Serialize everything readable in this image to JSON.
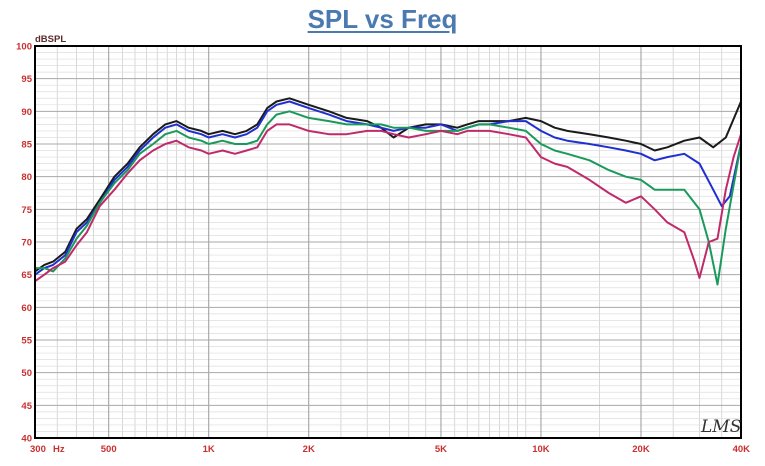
{
  "chart_data": {
    "type": "line",
    "title": "SPL vs Freq",
    "ylabel": "dBSPL",
    "xscale": "log",
    "xlim": [
      300,
      40000
    ],
    "ylim": [
      40,
      100
    ],
    "grid": true,
    "logo_text": "LMS",
    "x_ticks": [
      {
        "value": 300,
        "label": "300"
      },
      {
        "value": 500,
        "label": "500"
      },
      {
        "value": 1000,
        "label": "1K"
      },
      {
        "value": 2000,
        "label": "2K"
      },
      {
        "value": 5000,
        "label": "5K"
      },
      {
        "value": 10000,
        "label": "10K"
      },
      {
        "value": 20000,
        "label": "20K"
      },
      {
        "value": 40000,
        "label": "40K"
      }
    ],
    "x_unit": "Hz",
    "y_ticks": [
      {
        "value": 40,
        "label": "40"
      },
      {
        "value": 45,
        "label": "45"
      },
      {
        "value": 50,
        "label": "50"
      },
      {
        "value": 55,
        "label": "55"
      },
      {
        "value": 60,
        "label": "60"
      },
      {
        "value": 65,
        "label": "65"
      },
      {
        "value": 70,
        "label": "70"
      },
      {
        "value": 75,
        "label": "75"
      },
      {
        "value": 80,
        "label": "80"
      },
      {
        "value": 85,
        "label": "85"
      },
      {
        "value": 90,
        "label": "90"
      },
      {
        "value": 95,
        "label": "95"
      },
      {
        "value": 100,
        "label": "100"
      }
    ],
    "series": [
      {
        "color": "#1a1a1a",
        "points": [
          [
            300,
            65.5
          ],
          [
            320,
            66.5
          ],
          [
            340,
            67
          ],
          [
            370,
            68.5
          ],
          [
            400,
            72
          ],
          [
            430,
            73.5
          ],
          [
            470,
            76.5
          ],
          [
            520,
            80
          ],
          [
            570,
            82
          ],
          [
            620,
            84.5
          ],
          [
            680,
            86.5
          ],
          [
            740,
            88
          ],
          [
            800,
            88.5
          ],
          [
            870,
            87.5
          ],
          [
            950,
            87
          ],
          [
            1000,
            86.5
          ],
          [
            1100,
            87
          ],
          [
            1200,
            86.5
          ],
          [
            1300,
            87
          ],
          [
            1400,
            88
          ],
          [
            1500,
            90.5
          ],
          [
            1600,
            91.5
          ],
          [
            1750,
            92
          ],
          [
            2000,
            91
          ],
          [
            2300,
            90
          ],
          [
            2600,
            89
          ],
          [
            3000,
            88.5
          ],
          [
            3300,
            87.5
          ],
          [
            3600,
            86
          ],
          [
            4000,
            87.5
          ],
          [
            4500,
            88
          ],
          [
            5000,
            88
          ],
          [
            5600,
            87.5
          ],
          [
            6000,
            88
          ],
          [
            6500,
            88.5
          ],
          [
            7000,
            88.5
          ],
          [
            8000,
            88.5
          ],
          [
            9000,
            89
          ],
          [
            10000,
            88.5
          ],
          [
            11000,
            87.5
          ],
          [
            12000,
            87
          ],
          [
            14000,
            86.5
          ],
          [
            16000,
            86
          ],
          [
            18000,
            85.5
          ],
          [
            20000,
            85
          ],
          [
            22000,
            84
          ],
          [
            24000,
            84.5
          ],
          [
            27000,
            85.5
          ],
          [
            30000,
            86
          ],
          [
            33000,
            84.5
          ],
          [
            36000,
            86
          ],
          [
            40000,
            91.5
          ]
        ]
      },
      {
        "color": "#1f2fd0",
        "points": [
          [
            300,
            65
          ],
          [
            320,
            66
          ],
          [
            340,
            66.5
          ],
          [
            370,
            68
          ],
          [
            400,
            71.5
          ],
          [
            430,
            73
          ],
          [
            470,
            76
          ],
          [
            520,
            79.5
          ],
          [
            570,
            81.5
          ],
          [
            620,
            84
          ],
          [
            680,
            86
          ],
          [
            740,
            87.5
          ],
          [
            800,
            88
          ],
          [
            870,
            87
          ],
          [
            950,
            86.5
          ],
          [
            1000,
            86
          ],
          [
            1100,
            86.5
          ],
          [
            1200,
            86
          ],
          [
            1300,
            86.5
          ],
          [
            1400,
            87.5
          ],
          [
            1500,
            90
          ],
          [
            1600,
            91
          ],
          [
            1750,
            91.5
          ],
          [
            2000,
            90.5
          ],
          [
            2300,
            89.5
          ],
          [
            2600,
            88.5
          ],
          [
            3000,
            88
          ],
          [
            3300,
            87.5
          ],
          [
            3600,
            87
          ],
          [
            4000,
            87.5
          ],
          [
            4500,
            87.5
          ],
          [
            5000,
            88
          ],
          [
            5600,
            87
          ],
          [
            6000,
            87.5
          ],
          [
            6500,
            88
          ],
          [
            7000,
            88
          ],
          [
            8000,
            88.5
          ],
          [
            9000,
            88.5
          ],
          [
            10000,
            87
          ],
          [
            11000,
            86
          ],
          [
            12000,
            85.5
          ],
          [
            14000,
            85
          ],
          [
            16000,
            84.5
          ],
          [
            18000,
            84
          ],
          [
            20000,
            83.5
          ],
          [
            22000,
            82.5
          ],
          [
            24000,
            83
          ],
          [
            27000,
            83.5
          ],
          [
            30000,
            82
          ],
          [
            33000,
            78
          ],
          [
            35000,
            75.5
          ],
          [
            37000,
            77
          ],
          [
            40000,
            85
          ]
        ]
      },
      {
        "color": "#1a9a5a",
        "points": [
          [
            300,
            66
          ],
          [
            320,
            66
          ],
          [
            340,
            65.5
          ],
          [
            370,
            67.5
          ],
          [
            400,
            70.5
          ],
          [
            430,
            72.5
          ],
          [
            470,
            76
          ],
          [
            520,
            79
          ],
          [
            570,
            81
          ],
          [
            620,
            83.5
          ],
          [
            680,
            85
          ],
          [
            740,
            86.5
          ],
          [
            800,
            87
          ],
          [
            870,
            86
          ],
          [
            950,
            85.5
          ],
          [
            1000,
            85
          ],
          [
            1100,
            85.5
          ],
          [
            1200,
            85
          ],
          [
            1300,
            85
          ],
          [
            1400,
            85.5
          ],
          [
            1500,
            88
          ],
          [
            1600,
            89.5
          ],
          [
            1750,
            90
          ],
          [
            2000,
            89
          ],
          [
            2300,
            88.5
          ],
          [
            2600,
            88
          ],
          [
            3000,
            88
          ],
          [
            3300,
            88
          ],
          [
            3600,
            87.5
          ],
          [
            4000,
            87.5
          ],
          [
            4500,
            87
          ],
          [
            5000,
            87
          ],
          [
            5600,
            87
          ],
          [
            6000,
            87.5
          ],
          [
            6500,
            88
          ],
          [
            7000,
            88
          ],
          [
            8000,
            87.5
          ],
          [
            9000,
            87
          ],
          [
            10000,
            85
          ],
          [
            11000,
            84
          ],
          [
            12000,
            83.5
          ],
          [
            14000,
            82.5
          ],
          [
            16000,
            81
          ],
          [
            18000,
            80
          ],
          [
            20000,
            79.5
          ],
          [
            22000,
            78
          ],
          [
            24000,
            78
          ],
          [
            27000,
            78
          ],
          [
            30000,
            75
          ],
          [
            32000,
            70
          ],
          [
            34000,
            63.5
          ],
          [
            36000,
            72
          ],
          [
            40000,
            85
          ]
        ]
      },
      {
        "color": "#c02a6a",
        "points": [
          [
            300,
            64
          ],
          [
            320,
            65
          ],
          [
            340,
            66
          ],
          [
            370,
            67
          ],
          [
            400,
            69.5
          ],
          [
            430,
            71.5
          ],
          [
            470,
            75.5
          ],
          [
            520,
            78
          ],
          [
            570,
            80.5
          ],
          [
            620,
            82.5
          ],
          [
            680,
            84
          ],
          [
            740,
            85
          ],
          [
            800,
            85.5
          ],
          [
            870,
            84.5
          ],
          [
            950,
            84
          ],
          [
            1000,
            83.5
          ],
          [
            1100,
            84
          ],
          [
            1200,
            83.5
          ],
          [
            1300,
            84
          ],
          [
            1400,
            84.5
          ],
          [
            1500,
            87
          ],
          [
            1600,
            88
          ],
          [
            1750,
            88
          ],
          [
            2000,
            87
          ],
          [
            2300,
            86.5
          ],
          [
            2600,
            86.5
          ],
          [
            3000,
            87
          ],
          [
            3300,
            87
          ],
          [
            3600,
            86.5
          ],
          [
            4000,
            86
          ],
          [
            4500,
            86.5
          ],
          [
            5000,
            87
          ],
          [
            5600,
            86.5
          ],
          [
            6000,
            87
          ],
          [
            6500,
            87
          ],
          [
            7000,
            87
          ],
          [
            8000,
            86.5
          ],
          [
            9000,
            86
          ],
          [
            10000,
            83
          ],
          [
            11000,
            82
          ],
          [
            12000,
            81.5
          ],
          [
            14000,
            79.5
          ],
          [
            16000,
            77.5
          ],
          [
            18000,
            76
          ],
          [
            20000,
            77
          ],
          [
            22000,
            75
          ],
          [
            24000,
            73
          ],
          [
            27000,
            71.5
          ],
          [
            29000,
            67
          ],
          [
            30000,
            64.5
          ],
          [
            32000,
            70
          ],
          [
            34000,
            70.5
          ],
          [
            36000,
            78
          ],
          [
            38000,
            83
          ],
          [
            40000,
            86.5
          ]
        ]
      }
    ]
  }
}
